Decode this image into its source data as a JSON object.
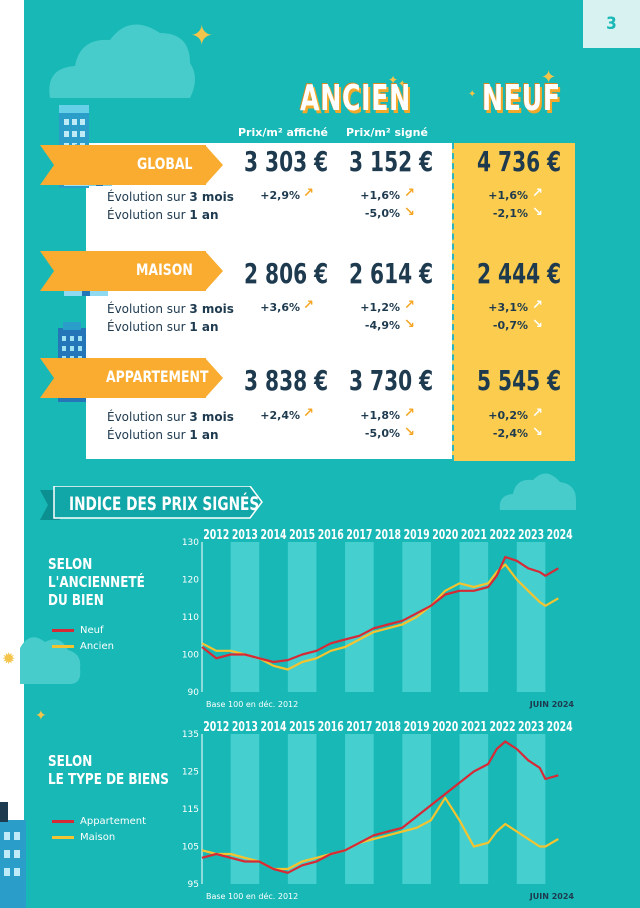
{
  "page_number": "3",
  "columns": {
    "ancien_title": "ANCIEN",
    "neuf_title": "NEUF",
    "sub_affiche": "Prix/m² affiché",
    "sub_signe": "Prix/m² signé"
  },
  "evo_labels": {
    "three_months_prefix": "Évolution sur ",
    "three_months_bold": "3 mois",
    "one_year_prefix": "Évolution sur ",
    "one_year_bold": "1 an"
  },
  "rows": [
    {
      "label": "GLOBAL",
      "affiche": "3 303 €",
      "signe": "3 152 €",
      "neuf": "4 736 €",
      "affiche_3m": "+2,9%",
      "signe_3m": "+1,6%",
      "signe_1y": "-5,0%",
      "neuf_3m": "+1,6%",
      "neuf_1y": "-2,1%"
    },
    {
      "label": "MAISON",
      "affiche": "2 806 €",
      "signe": "2 614 €",
      "neuf": "2 444 €",
      "affiche_3m": "+3,6%",
      "signe_3m": "+1,2%",
      "signe_1y": "-4,9%",
      "neuf_3m": "+3,1%",
      "neuf_1y": "-0,7%"
    },
    {
      "label": "APPARTEMENT",
      "affiche": "3 838 €",
      "signe": "3 730 €",
      "neuf": "5 545 €",
      "affiche_3m": "+2,4%",
      "signe_3m": "+1,8%",
      "signe_1y": "-5,0%",
      "neuf_3m": "+0,2%",
      "neuf_1y": "-2,4%"
    }
  ],
  "section_title": "INDICE DES PRIX SIGNÉS",
  "arrows": {
    "up": "↗",
    "down": "↘"
  },
  "colors": {
    "background": "#17b8b5",
    "ribbon": "#f9ac2f",
    "neuf_column": "#fbcc4d",
    "text_dark": "#1e3a4f",
    "series_red": "#d62a36",
    "series_yellow": "#f4c430",
    "band": "#45cfcf"
  },
  "chart_data": [
    {
      "type": "line",
      "title": "SELON L'ANCIENNETÉ DU BIEN",
      "title_lines": [
        "SELON",
        "L'ANCIENNETÉ",
        "DU BIEN"
      ],
      "years": [
        "2012",
        "2013",
        "2014",
        "2015",
        "2016",
        "2017",
        "2018",
        "2019",
        "2020",
        "2021",
        "2022",
        "2023",
        "2024"
      ],
      "ylim": [
        90,
        130
      ],
      "yticks": [
        130,
        120,
        110,
        100,
        90
      ],
      "note_left": "Base 100 en déc. 2012",
      "note_right": "JUIN 2024",
      "x": [
        2012.0,
        2012.5,
        2013.0,
        2013.5,
        2014.0,
        2014.5,
        2015.0,
        2015.5,
        2016.0,
        2016.5,
        2017.0,
        2017.5,
        2018.0,
        2018.5,
        2019.0,
        2019.5,
        2020.0,
        2020.5,
        2021.0,
        2021.5,
        2022.0,
        2022.3,
        2022.6,
        2023.0,
        2023.4,
        2023.8,
        2024.0,
        2024.45
      ],
      "series": [
        {
          "name": "Neuf",
          "color": "#d62a36",
          "values": [
            102,
            99,
            100,
            100,
            99,
            98,
            98.5,
            100,
            101,
            103,
            104,
            105,
            107,
            108,
            109,
            111,
            113,
            116,
            117,
            117,
            118,
            121,
            126,
            125,
            123,
            122,
            121,
            123
          ]
        },
        {
          "name": "Ancien",
          "color": "#f4c430",
          "values": [
            103,
            101,
            101,
            100,
            99,
            97,
            96,
            98,
            99,
            101,
            102,
            104,
            106,
            107,
            108,
            110,
            113,
            117,
            119,
            118,
            119,
            122,
            124,
            120,
            117,
            114,
            113,
            115
          ]
        }
      ]
    },
    {
      "type": "line",
      "title": "SELON LE TYPE DE BIENS",
      "title_lines": [
        "SELON",
        "LE TYPE DE BIENS"
      ],
      "years": [
        "2012",
        "2013",
        "2014",
        "2015",
        "2016",
        "2017",
        "2018",
        "2019",
        "2020",
        "2021",
        "2022",
        "2023",
        "2024"
      ],
      "ylim": [
        95,
        135
      ],
      "yticks": [
        135,
        125,
        115,
        105,
        95
      ],
      "note_left": "Base 100 en déc. 2012",
      "note_right": "JUIN 2024",
      "x": [
        2012.0,
        2012.5,
        2013.0,
        2013.5,
        2014.0,
        2014.5,
        2015.0,
        2015.5,
        2016.0,
        2016.5,
        2017.0,
        2017.5,
        2018.0,
        2018.5,
        2019.0,
        2019.5,
        2020.0,
        2020.5,
        2021.0,
        2021.5,
        2022.0,
        2022.3,
        2022.6,
        2023.0,
        2023.4,
        2023.8,
        2024.0,
        2024.45
      ],
      "series": [
        {
          "name": "Appartement",
          "color": "#d62a36",
          "values": [
            102,
            103,
            102,
            101,
            101,
            99,
            98,
            100,
            101,
            103,
            104,
            106,
            108,
            109,
            110,
            113,
            116,
            119,
            122,
            125,
            127,
            131,
            133,
            131,
            128,
            126,
            123,
            124
          ]
        },
        {
          "name": "Maison",
          "color": "#f4c430",
          "values": [
            104,
            103,
            103,
            102,
            101,
            99,
            99,
            101,
            102,
            103,
            104,
            106,
            107,
            108,
            109,
            110,
            112,
            118,
            112,
            105,
            106,
            109,
            111,
            109,
            107,
            105,
            105,
            107
          ]
        }
      ]
    }
  ]
}
